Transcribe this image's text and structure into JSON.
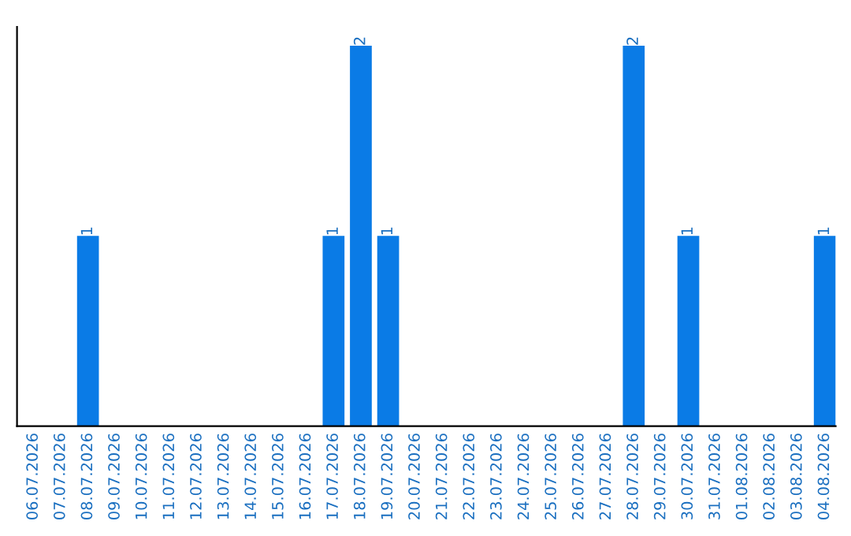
{
  "chart_data": {
    "type": "bar",
    "categories": [
      "06.07.2026",
      "07.07.2026",
      "08.07.2026",
      "09.07.2026",
      "10.07.2026",
      "11.07.2026",
      "12.07.2026",
      "13.07.2026",
      "14.07.2026",
      "15.07.2026",
      "16.07.2026",
      "17.07.2026",
      "18.07.2026",
      "19.07.2026",
      "20.07.2026",
      "21.07.2026",
      "22.07.2026",
      "23.07.2026",
      "24.07.2026",
      "25.07.2026",
      "26.07.2026",
      "27.07.2026",
      "28.07.2026",
      "29.07.2026",
      "30.07.2026",
      "31.07.2026",
      "01.08.2026",
      "02.08.2026",
      "03.08.2026",
      "04.08.2026"
    ],
    "values": [
      0,
      0,
      1,
      0,
      0,
      0,
      0,
      0,
      0,
      0,
      0,
      1,
      2,
      1,
      0,
      0,
      0,
      0,
      0,
      0,
      0,
      0,
      2,
      0,
      1,
      0,
      0,
      0,
      0,
      1
    ],
    "value_labels": [
      null,
      null,
      "1",
      null,
      null,
      null,
      null,
      null,
      null,
      null,
      null,
      "1",
      "2",
      "1",
      null,
      null,
      null,
      null,
      null,
      null,
      null,
      null,
      "2",
      null,
      "1",
      null,
      null,
      null,
      null,
      "1"
    ],
    "color": "#0a7be6",
    "tick_labels": "x",
    "grid": false,
    "legend": false
  }
}
